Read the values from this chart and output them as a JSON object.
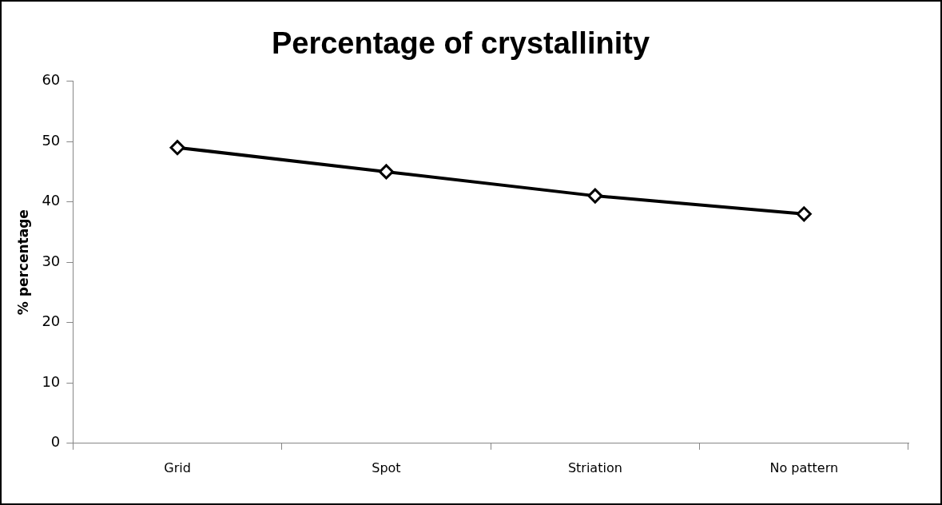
{
  "chart_data": {
    "type": "line",
    "title": "Percentage of crystallinity",
    "ylabel": "% percentage",
    "categories": [
      "Grid",
      "Spot",
      "Striation",
      "No pattern"
    ],
    "series": [
      {
        "color": "#000000",
        "values": [
          49,
          45,
          41,
          38
        ]
      }
    ],
    "ylim": [
      0,
      60
    ],
    "yticks": [
      0,
      10,
      20,
      30,
      40,
      50,
      60
    ],
    "grid": false,
    "legend": false,
    "marker": "diamond",
    "line_style": "solid"
  }
}
